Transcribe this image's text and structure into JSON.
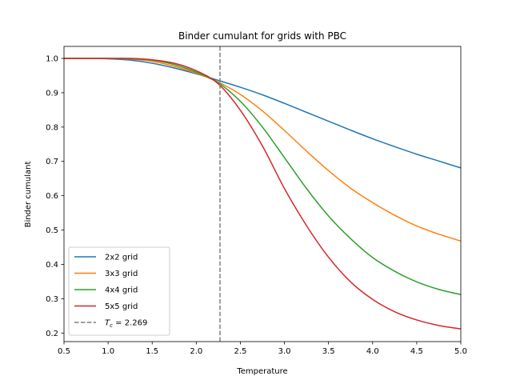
{
  "chart_data": {
    "type": "line",
    "title": "Binder cumulant for grids with PBC",
    "xlabel": "Temperature",
    "ylabel": "Binder cumulant",
    "xlim": [
      0.5,
      5.0
    ],
    "ylim": [
      0.175,
      1.035
    ],
    "xticks": [
      0.5,
      1.0,
      1.5,
      2.0,
      2.5,
      3.0,
      3.5,
      4.0,
      4.5,
      5.0
    ],
    "xtick_labels": [
      "0.5",
      "1.0",
      "1.5",
      "2.0",
      "2.5",
      "3.0",
      "3.5",
      "4.0",
      "4.5",
      "5.0"
    ],
    "yticks": [
      0.2,
      0.3,
      0.4,
      0.5,
      0.6,
      0.7,
      0.8,
      0.9,
      1.0
    ],
    "ytick_labels": [
      "0.2",
      "0.3",
      "0.4",
      "0.5",
      "0.6",
      "0.7",
      "0.8",
      "0.9",
      "1.0"
    ],
    "grid": false,
    "legend_position": "lower-left",
    "x": [
      0.5,
      0.75,
      1.0,
      1.25,
      1.5,
      1.75,
      2.0,
      2.25,
      2.5,
      2.75,
      3.0,
      3.25,
      3.5,
      3.75,
      4.0,
      4.25,
      4.5,
      4.75,
      5.0
    ],
    "series": [
      {
        "name": "2x2 grid",
        "color": "#1f77b4",
        "values": [
          1.0,
          1.0,
          0.999,
          0.995,
          0.986,
          0.972,
          0.955,
          0.936,
          0.916,
          0.894,
          0.869,
          0.843,
          0.817,
          0.791,
          0.766,
          0.743,
          0.721,
          0.701,
          0.681
        ]
      },
      {
        "name": "3x3 grid",
        "color": "#ff7f0e",
        "values": [
          1.0,
          1.0,
          1.0,
          0.998,
          0.992,
          0.977,
          0.957,
          0.931,
          0.895,
          0.847,
          0.79,
          0.73,
          0.673,
          0.622,
          0.58,
          0.543,
          0.512,
          0.488,
          0.468
        ]
      },
      {
        "name": "4x4 grid",
        "color": "#2ca02c",
        "values": [
          1.0,
          1.0,
          1.0,
          0.999,
          0.995,
          0.982,
          0.96,
          0.929,
          0.875,
          0.8,
          0.711,
          0.621,
          0.541,
          0.475,
          0.42,
          0.38,
          0.349,
          0.327,
          0.312
        ]
      },
      {
        "name": "5x5 grid",
        "color": "#d62728",
        "values": [
          1.0,
          1.0,
          1.0,
          1.0,
          0.996,
          0.986,
          0.964,
          0.926,
          0.849,
          0.745,
          0.621,
          0.513,
          0.421,
          0.349,
          0.298,
          0.262,
          0.238,
          0.222,
          0.212
        ]
      }
    ],
    "vline": {
      "x": 2.269,
      "color": "#7f7f7f",
      "label_symbol": "T",
      "label_subscript": "c",
      "label_rest": " = 2.269"
    }
  }
}
